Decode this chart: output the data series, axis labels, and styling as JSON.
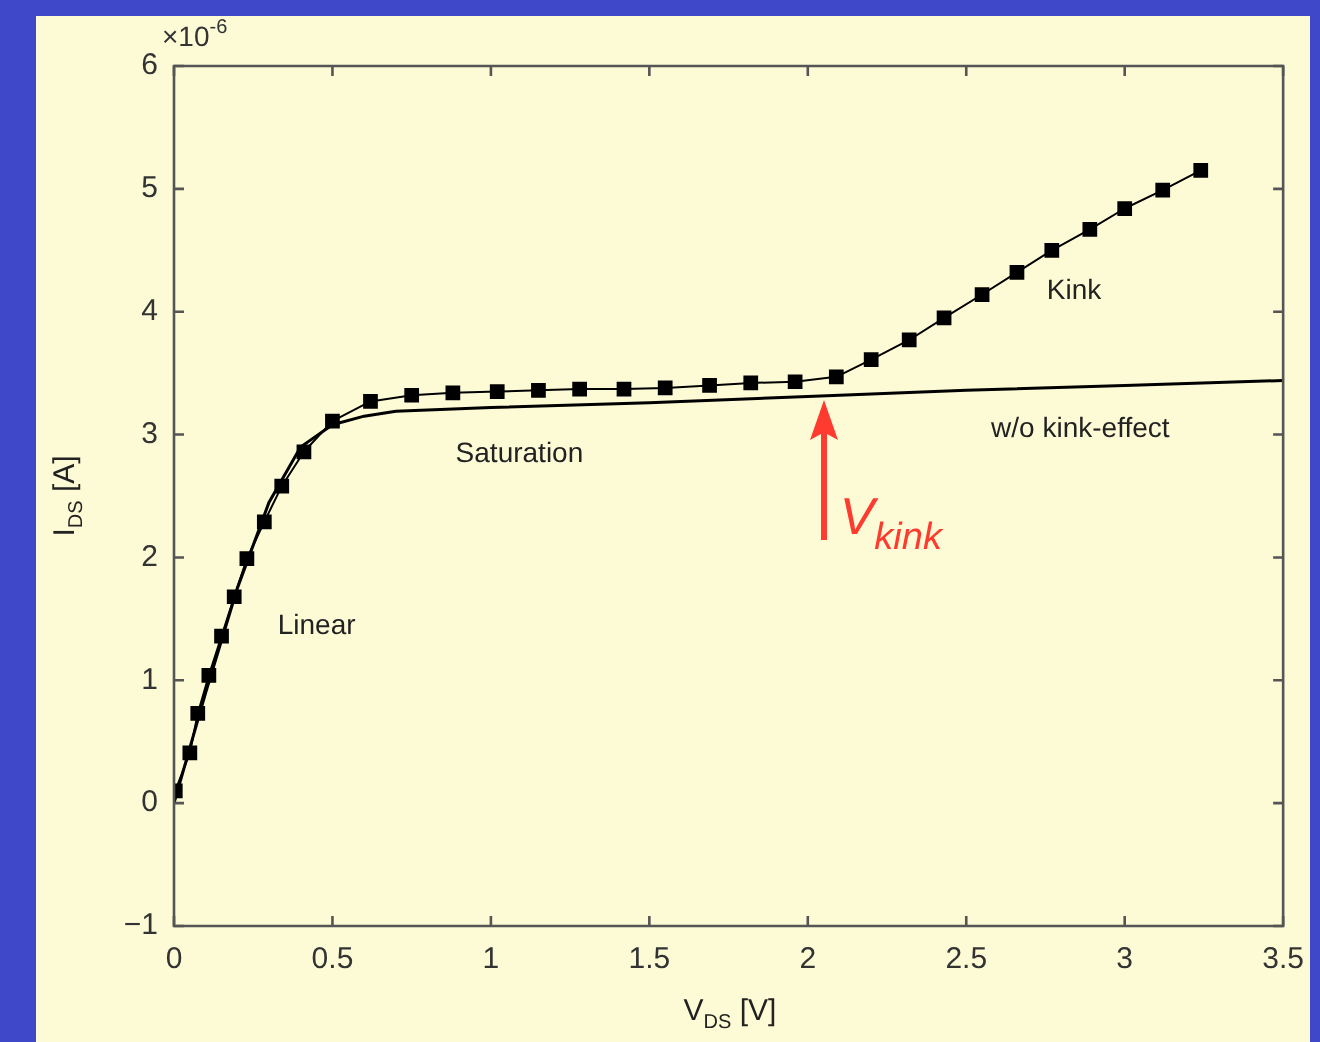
{
  "chart_data": {
    "type": "line",
    "xlabel": "V$_{DS}$ [V]",
    "ylabel": "I$_{DS}$ [A]",
    "xlim": [
      0,
      3.5
    ],
    "xticks": [
      0,
      0.5,
      1,
      1.5,
      2,
      2.5,
      3,
      3.5
    ],
    "ylim": [
      -1,
      6
    ],
    "yticks": [
      {
        "value": -1,
        "label": "−1"
      },
      0,
      1,
      2,
      3,
      4,
      5,
      6
    ],
    "grid": false,
    "legend": false,
    "series": [
      {
        "color": "#000000",
        "marker": "none",
        "x": [
          0,
          0.1,
          0.2,
          0.3,
          0.4,
          0.5,
          0.6,
          0.7,
          1.0,
          1.5,
          2.0,
          2.5,
          3.0,
          3.5
        ],
        "values": [
          0,
          0.9,
          1.75,
          2.45,
          2.9,
          3.08,
          3.15,
          3.19,
          3.22,
          3.26,
          3.31,
          3.36,
          3.4,
          3.44
        ]
      },
      {
        "color": "#000000",
        "marker": "square",
        "x": [
          0.004,
          0.05,
          0.075,
          0.11,
          0.15,
          0.19,
          0.23,
          0.285,
          0.34,
          0.41,
          0.5,
          0.62,
          0.75,
          0.88,
          1.02,
          1.15,
          1.28,
          1.42,
          1.55,
          1.69,
          1.82,
          1.96,
          2.09,
          2.2,
          2.32,
          2.43,
          2.55,
          2.66,
          2.77,
          2.89,
          3.0,
          3.12,
          3.24
        ],
        "values": [
          0.1,
          0.41,
          0.73,
          1.04,
          1.36,
          1.68,
          1.99,
          2.29,
          2.58,
          2.86,
          3.11,
          3.27,
          3.32,
          3.34,
          3.35,
          3.36,
          3.37,
          3.37,
          3.38,
          3.4,
          3.42,
          3.43,
          3.47,
          3.61,
          3.77,
          3.95,
          4.14,
          4.32,
          4.5,
          4.67,
          4.84,
          4.99,
          5.15
        ]
      }
    ],
    "annotations": [
      "×10$^{-6}$",
      "Saturation",
      "Linear",
      "Kink",
      "w/o kink-effect",
      {
        "text": "V$_{kink}$",
        "x": 2.05,
        "y": 3.3
      }
    ]
  }
}
